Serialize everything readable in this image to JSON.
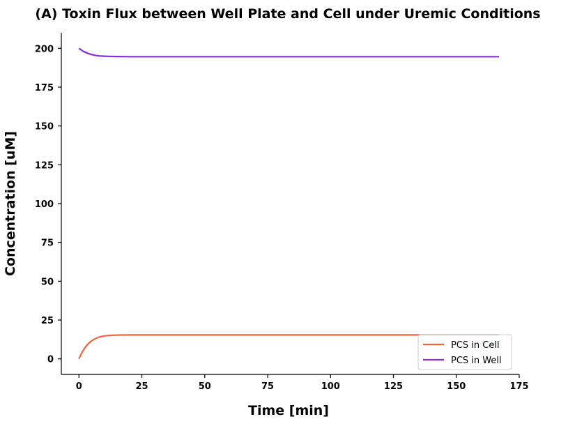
{
  "chart_data": {
    "type": "line",
    "title": "(A) Toxin Flux between Well Plate and Cell under Uremic Conditions",
    "xlabel": "Time [min]",
    "ylabel": "Concentration [uM]",
    "xlim": [
      -7,
      175
    ],
    "ylim": [
      -10,
      210
    ],
    "xticks": [
      0,
      25,
      50,
      75,
      100,
      125,
      150,
      175
    ],
    "yticks": [
      0,
      25,
      50,
      75,
      100,
      125,
      150,
      175,
      200
    ],
    "grid": false,
    "legend_position": "lower-right",
    "series": [
      {
        "name": "PCS in Cell",
        "color": "#f4623a",
        "x": [
          0,
          1,
          2,
          3,
          4,
          5,
          6,
          7,
          8,
          10,
          12,
          15,
          20,
          25,
          30,
          50,
          100,
          150,
          167
        ],
        "y": [
          0,
          3.5,
          6.3,
          8.5,
          10.2,
          11.6,
          12.6,
          13.4,
          14.0,
          14.8,
          15.1,
          15.3,
          15.4,
          15.4,
          15.4,
          15.4,
          15.4,
          15.4,
          15.4
        ]
      },
      {
        "name": "PCS in Well",
        "color": "#8a2be2",
        "x": [
          0,
          1,
          2,
          3,
          4,
          5,
          6,
          7,
          8,
          10,
          12,
          15,
          20,
          25,
          30,
          50,
          100,
          150,
          167
        ],
        "y": [
          200,
          198.8,
          197.8,
          197.1,
          196.5,
          196.0,
          195.6,
          195.3,
          195.1,
          194.9,
          194.8,
          194.7,
          194.6,
          194.6,
          194.6,
          194.6,
          194.6,
          194.6,
          194.6
        ]
      }
    ]
  }
}
